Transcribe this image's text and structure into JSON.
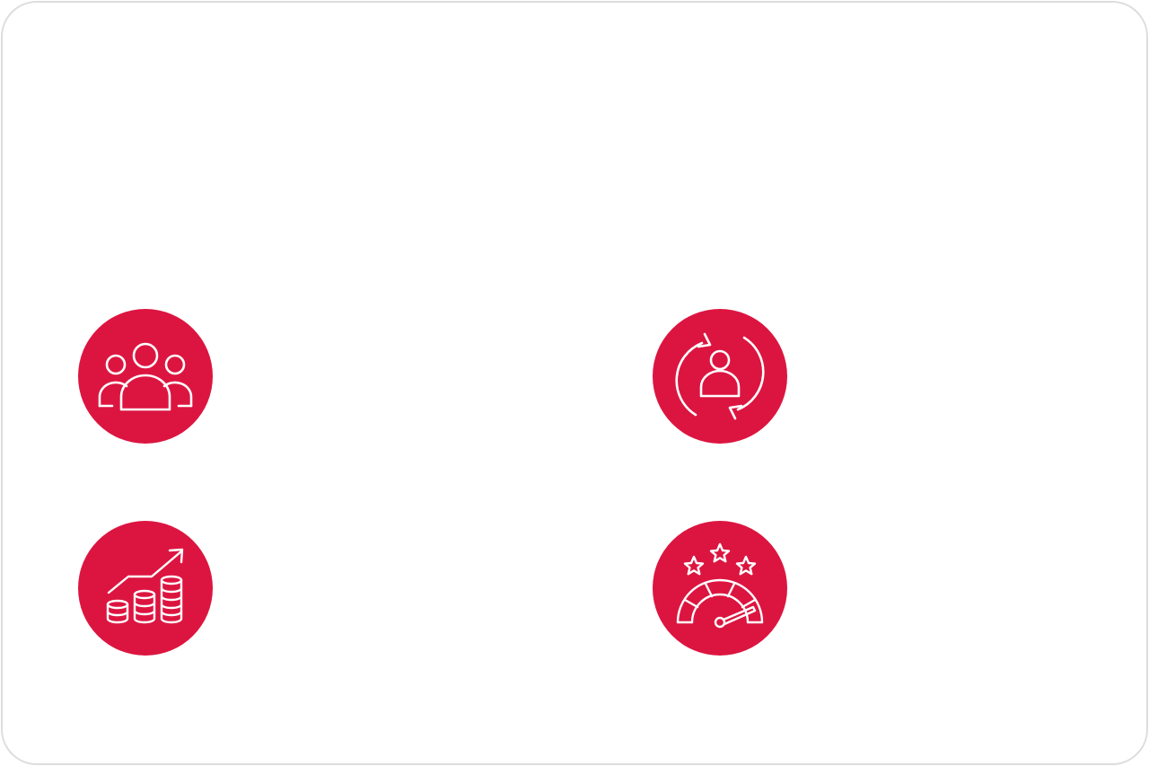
{
  "colors": {
    "accent": "#dc1540",
    "icon_stroke": "#ffffff",
    "card_border": "#dddddd",
    "background": "#ffffff"
  },
  "features": [
    {
      "icon": "people-group-icon"
    },
    {
      "icon": "customer-cycle-icon"
    },
    {
      "icon": "revenue-growth-icon"
    },
    {
      "icon": "rating-gauge-icon"
    }
  ]
}
